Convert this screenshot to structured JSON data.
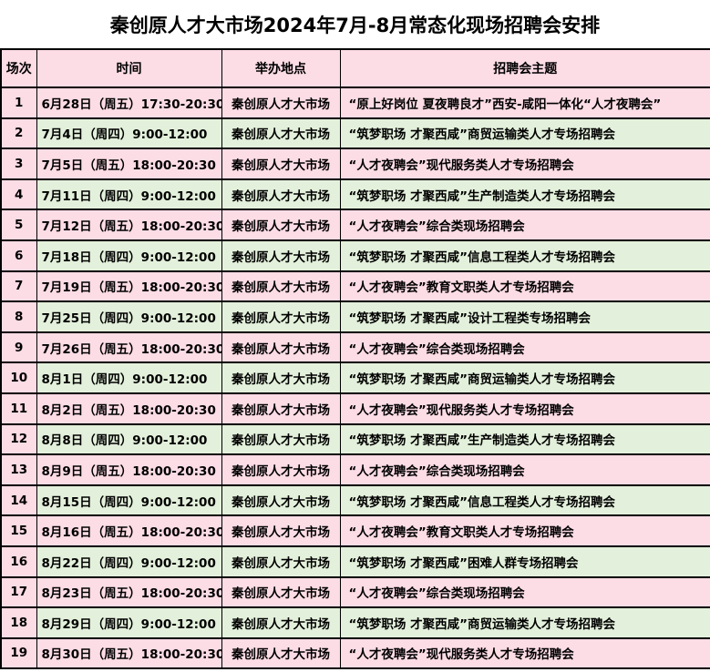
{
  "title": "秦创原人才大市场2024年7月-8月常态化现场招聘会安排",
  "colors": {
    "pink": "#fcdce5",
    "green": "#e3f0db",
    "border": "#000000",
    "text": "#000000",
    "background": "#ffffff"
  },
  "table": {
    "headers": [
      "场次",
      "时间",
      "举办地点",
      "招聘会主题"
    ],
    "rows": [
      {
        "no": "1",
        "time": "6月28日（周五）17:30-20:30",
        "venue": "秦创原人才大市场",
        "theme": "“原上好岗位 夏夜聘良才”西安-咸阳一体化“人才夜聘会”",
        "tint": "pink"
      },
      {
        "no": "2",
        "time": "7月4日（周四）9:00-12:00",
        "venue": "秦创原人才大市场",
        "theme": "“筑梦职场 才聚西咸”商贸运输类人才专场招聘会",
        "tint": "green"
      },
      {
        "no": "3",
        "time": "7月5日（周五）18:00-20:30",
        "venue": "秦创原人才大市场",
        "theme": "“人才夜聘会”现代服务类人才专场招聘会",
        "tint": "pink"
      },
      {
        "no": "4",
        "time": "7月11日（周四）9:00-12:00",
        "venue": "秦创原人才大市场",
        "theme": "“筑梦职场 才聚西咸”生产制造类人才专场招聘会",
        "tint": "green"
      },
      {
        "no": "5",
        "time": "7月12日（周五）18:00-20:30",
        "venue": "秦创原人才大市场",
        "theme": "“人才夜聘会”综合类现场招聘会",
        "tint": "pink"
      },
      {
        "no": "6",
        "time": "7月18日（周四）9:00-12:00",
        "venue": "秦创原人才大市场",
        "theme": "“筑梦职场 才聚西咸”信息工程类人才专场招聘会",
        "tint": "green"
      },
      {
        "no": "7",
        "time": "7月19日（周五）18:00-20:30",
        "venue": "秦创原人才大市场",
        "theme": "“人才夜聘会”教育文职类人才专场招聘会",
        "tint": "pink"
      },
      {
        "no": "8",
        "time": "7月25日（周四）9:00-12:00",
        "venue": "秦创原人才大市场",
        "theme": "“筑梦职场 才聚西咸”设计工程类专场招聘会",
        "tint": "green"
      },
      {
        "no": "9",
        "time": "7月26日（周五）18:00-20:30",
        "venue": "秦创原人才大市场",
        "theme": "“人才夜聘会”综合类现场招聘会",
        "tint": "pink"
      },
      {
        "no": "10",
        "time": "8月1日（周四）9:00-12:00",
        "venue": "秦创原人才大市场",
        "theme": "“筑梦职场 才聚西咸”商贸运输类人才专场招聘会",
        "tint": "green"
      },
      {
        "no": "11",
        "time": "8月2日（周五）18:00-20:30",
        "venue": "秦创原人才大市场",
        "theme": "“人才夜聘会”现代服务类人才专场招聘会",
        "tint": "pink"
      },
      {
        "no": "12",
        "time": "8月8日（周四）9:00-12:00",
        "venue": "秦创原人才大市场",
        "theme": "“筑梦职场 才聚西咸”生产制造类人才专场招聘会",
        "tint": "green"
      },
      {
        "no": "13",
        "time": "8月9日（周五）18:00-20:30",
        "venue": "秦创原人才大市场",
        "theme": "“人才夜聘会”综合类现场招聘会",
        "tint": "pink"
      },
      {
        "no": "14",
        "time": "8月15日（周四）9:00-12:00",
        "venue": "秦创原人才大市场",
        "theme": "“筑梦职场 才聚西咸”信息工程类人才专场招聘会",
        "tint": "green"
      },
      {
        "no": "15",
        "time": "8月16日（周五）18:00-20:30",
        "venue": "秦创原人才大市场",
        "theme": "“人才夜聘会”教育文职类人才专场招聘会",
        "tint": "pink"
      },
      {
        "no": "16",
        "time": "8月22日（周四）9:00-12:00",
        "venue": "秦创原人才大市场",
        "theme": "“筑梦职场 才聚西咸”困难人群专场招聘会",
        "tint": "green"
      },
      {
        "no": "17",
        "time": "8月23日（周五）18:00-20:30",
        "venue": "秦创原人才大市场",
        "theme": "“人才夜聘会”综合类现场招聘会",
        "tint": "pink"
      },
      {
        "no": "18",
        "time": "8月29日（周四）9:00-12:00",
        "venue": "秦创原人才大市场",
        "theme": "“筑梦职场 才聚西咸”商贸运输类人才专场招聘会",
        "tint": "green"
      },
      {
        "no": "19",
        "time": "8月30日（周五）18:00-20:30",
        "venue": "秦创原人才大市场",
        "theme": "“人才夜聘会”现代服务类人才专场招聘会",
        "tint": "pink"
      }
    ]
  }
}
